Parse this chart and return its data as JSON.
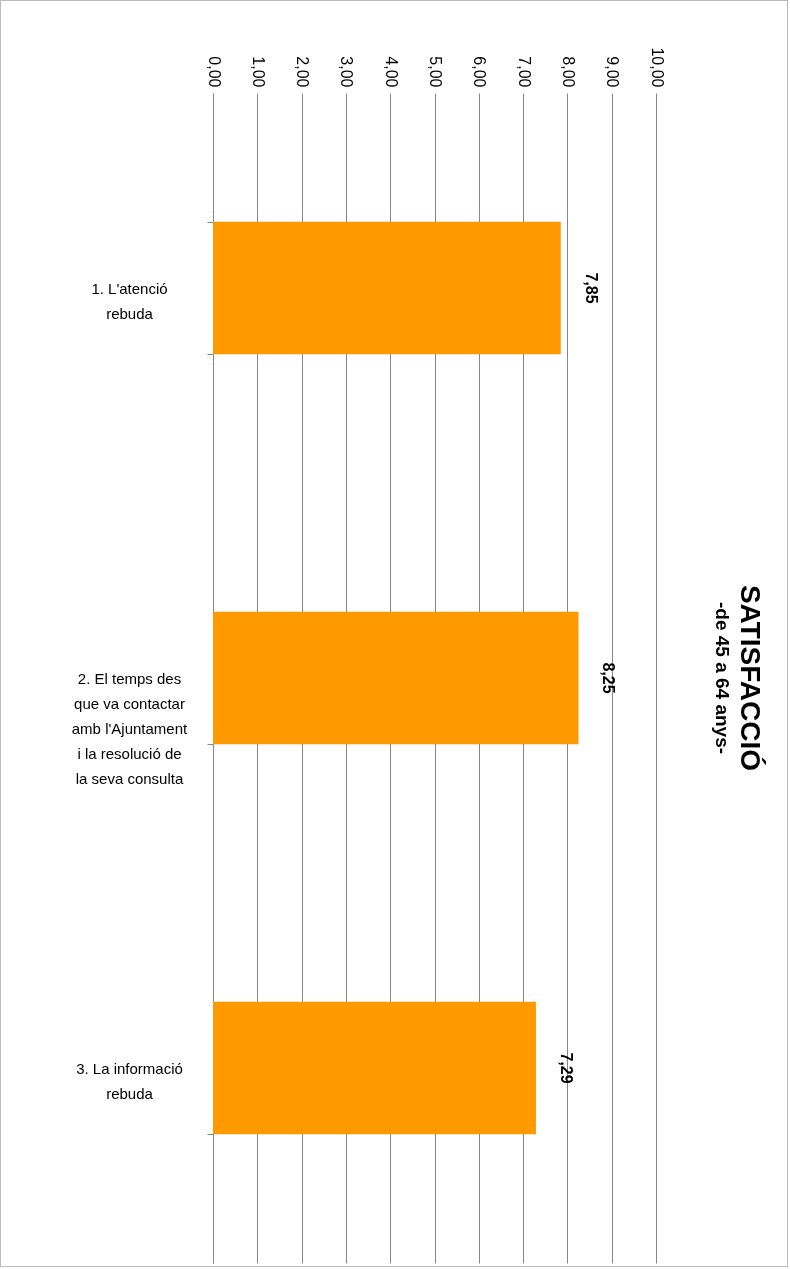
{
  "chart_data": {
    "type": "bar",
    "orientation": "horizontal",
    "title": "SATISFACCIÓ",
    "subtitle": "-de 45 a 64 anys-",
    "categories": [
      "1. L'atenció rebuda",
      "2. El temps des que va contactar amb l'Ajuntament i la resolució de la seva consulta",
      "3. La informació rebuda"
    ],
    "values": [
      7.85,
      8.25,
      7.29
    ],
    "color": "#ff9900",
    "value_labels": [
      "7,85",
      "8,25",
      "7,29"
    ],
    "xlim": [
      0,
      10
    ],
    "xticks": [
      {
        "value": 0,
        "label": "0,00"
      },
      {
        "value": 1,
        "label": "1,00"
      },
      {
        "value": 2,
        "label": "2,00"
      },
      {
        "value": 3,
        "label": "3,00"
      },
      {
        "value": 4,
        "label": "4,00"
      },
      {
        "value": 5,
        "label": "5,00"
      },
      {
        "value": 6,
        "label": "6,00"
      },
      {
        "value": 7,
        "label": "7,00"
      },
      {
        "value": 8,
        "label": "8,00"
      },
      {
        "value": 9,
        "label": "9,00"
      },
      {
        "value": 10,
        "label": "10,00"
      }
    ],
    "grid": "x"
  }
}
